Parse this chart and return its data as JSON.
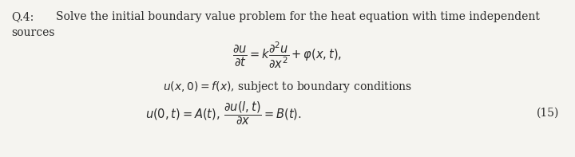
{
  "bg_color": "#f5f4f0",
  "text_color": "#2a2a2a",
  "fig_width": 7.2,
  "fig_height": 1.97,
  "dpi": 100,
  "line1_part1": "Q.4:",
  "line1_part2": "Solve the initial boundary value problem for the heat equation with time independent",
  "line2": "sources",
  "eq_main": "$\\dfrac{\\partial u}{\\partial t} = k\\dfrac{\\partial^2 u}{\\partial x^2} + \\varphi(x,t),$",
  "eq2": "$u(x,0) = f(x)$, subject to boundary conditions",
  "eq3": "$u(0,t) = A(t),\\,\\dfrac{\\partial u(l,t)}{\\partial x} = B(t).$",
  "eq_num": "(15)",
  "fs_text": 10.0,
  "fs_eq": 10.5
}
